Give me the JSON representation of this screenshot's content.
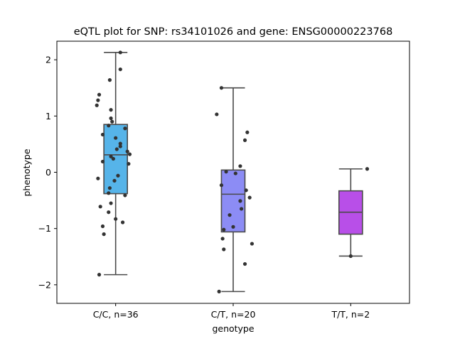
{
  "chart_data": {
    "type": "box",
    "title": "eQTL plot for SNP: rs34101026 and gene: ENSG00000223768",
    "xlabel": "genotype",
    "ylabel": "phenotype",
    "ylim": [
      -2.33,
      2.33
    ],
    "yticks": [
      {
        "value": 2,
        "label": "2"
      },
      {
        "value": 1,
        "label": "1"
      },
      {
        "value": 0,
        "label": "0"
      },
      {
        "value": -1,
        "label": "−1"
      },
      {
        "value": -2,
        "label": "−2"
      }
    ],
    "grid": false,
    "legend": "none",
    "categories": [
      "C/C, n=36",
      "C/T, n=20",
      "T/T, n=2"
    ],
    "boxes": [
      {
        "color": "#56b4e9",
        "min": -1.82,
        "q1": -0.38,
        "median": 0.31,
        "q3": 0.85,
        "max": 2.13
      },
      {
        "color": "#8c8cf5",
        "min": -2.12,
        "q1": -1.06,
        "median": -0.39,
        "q3": 0.04,
        "max": 1.5
      },
      {
        "color": "#b84fe8",
        "min": -1.49,
        "q1": -1.1,
        "median": -0.71,
        "q3": -0.33,
        "max": 0.06
      }
    ],
    "points": [
      [
        {
          "x": 0.04,
          "y": 2.13
        },
        {
          "x": 0.04,
          "y": 1.83
        },
        {
          "x": -0.05,
          "y": 1.64
        },
        {
          "x": -0.14,
          "y": 1.38
        },
        {
          "x": -0.15,
          "y": 1.28
        },
        {
          "x": -0.16,
          "y": 1.19
        },
        {
          "x": -0.04,
          "y": 1.11
        },
        {
          "x": -0.04,
          "y": 0.96
        },
        {
          "x": -0.03,
          "y": 0.9
        },
        {
          "x": -0.06,
          "y": 0.83
        },
        {
          "x": 0.08,
          "y": 0.78
        },
        {
          "x": -0.11,
          "y": 0.67
        },
        {
          "x": 0.0,
          "y": 0.61
        },
        {
          "x": 0.04,
          "y": 0.51
        },
        {
          "x": 0.04,
          "y": 0.46
        },
        {
          "x": 0.01,
          "y": 0.41
        },
        {
          "x": 0.1,
          "y": 0.37
        },
        {
          "x": 0.12,
          "y": 0.32
        },
        {
          "x": -0.04,
          "y": 0.28
        },
        {
          "x": -0.02,
          "y": 0.24
        },
        {
          "x": -0.11,
          "y": 0.19
        },
        {
          "x": 0.11,
          "y": 0.15
        },
        {
          "x": 0.02,
          "y": -0.06
        },
        {
          "x": -0.15,
          "y": -0.11
        },
        {
          "x": -0.01,
          "y": -0.15
        },
        {
          "x": -0.05,
          "y": -0.28
        },
        {
          "x": -0.06,
          "y": -0.37
        },
        {
          "x": 0.08,
          "y": -0.41
        },
        {
          "x": -0.04,
          "y": -0.55
        },
        {
          "x": -0.13,
          "y": -0.61
        },
        {
          "x": -0.06,
          "y": -0.71
        },
        {
          "x": 0.0,
          "y": -0.83
        },
        {
          "x": 0.06,
          "y": -0.89
        },
        {
          "x": -0.11,
          "y": -0.96
        },
        {
          "x": -0.1,
          "y": -1.1
        },
        {
          "x": -0.14,
          "y": -1.82
        }
      ],
      [
        {
          "x": -0.1,
          "y": 1.5
        },
        {
          "x": -0.14,
          "y": 1.03
        },
        {
          "x": 0.12,
          "y": 0.71
        },
        {
          "x": 0.1,
          "y": 0.57
        },
        {
          "x": 0.06,
          "y": 0.11
        },
        {
          "x": -0.06,
          "y": 0.01
        },
        {
          "x": 0.02,
          "y": -0.02
        },
        {
          "x": -0.1,
          "y": -0.23
        },
        {
          "x": 0.11,
          "y": -0.32
        },
        {
          "x": 0.14,
          "y": -0.45
        },
        {
          "x": 0.06,
          "y": -0.51
        },
        {
          "x": 0.07,
          "y": -0.65
        },
        {
          "x": -0.03,
          "y": -0.76
        },
        {
          "x": -0.08,
          "y": -1.02
        },
        {
          "x": -0.09,
          "y": -1.18
        },
        {
          "x": 0.16,
          "y": -1.27
        },
        {
          "x": -0.08,
          "y": -1.37
        },
        {
          "x": 0.1,
          "y": -1.63
        },
        {
          "x": -0.12,
          "y": -2.12
        },
        {
          "x": 0.0,
          "y": -0.97
        }
      ],
      [
        {
          "x": 0.14,
          "y": 0.06
        },
        {
          "x": 0.0,
          "y": -1.49
        }
      ]
    ]
  }
}
